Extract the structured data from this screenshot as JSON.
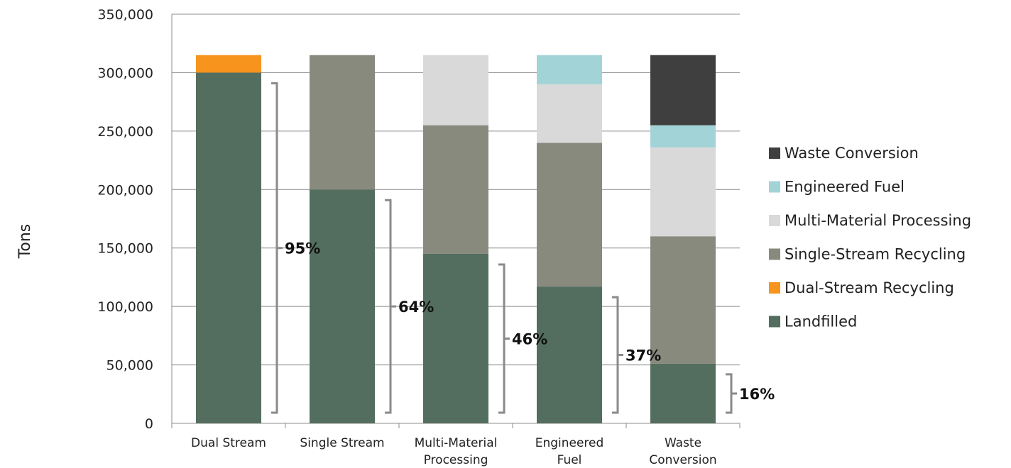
{
  "chart_data": {
    "type": "bar",
    "stacked": true,
    "ylabel": "Tons",
    "ylim": [
      0,
      350000
    ],
    "yticks": [
      "0",
      "50,000",
      "100,000",
      "150,000",
      "200,000",
      "250,000",
      "300,000",
      "350,000"
    ],
    "categories": [
      [
        "Dual Stream"
      ],
      [
        "Single Stream"
      ],
      [
        "Multi-Material",
        "Processing"
      ],
      [
        "Engineered",
        "Fuel"
      ],
      [
        "Waste",
        "Conversion"
      ]
    ],
    "series": [
      {
        "name": "Landfilled",
        "color": "#536e5f",
        "values": [
          300000,
          200000,
          145000,
          117000,
          51000
        ]
      },
      {
        "name": "Dual-Stream Recycling",
        "color": "#f7941d",
        "values": [
          15000,
          0,
          0,
          0,
          0
        ]
      },
      {
        "name": "Single-Stream Recycling",
        "color": "#898a7e",
        "values": [
          0,
          115000,
          110000,
          123000,
          109000
        ]
      },
      {
        "name": "Multi-Material Processing",
        "color": "#d9d9d9",
        "values": [
          0,
          0,
          60000,
          50000,
          76000
        ]
      },
      {
        "name": "Engineered Fuel",
        "color": "#a2d4d7",
        "values": [
          0,
          0,
          0,
          25000,
          19000
        ]
      },
      {
        "name": "Waste Conversion",
        "color": "#3f3f3f",
        "values": [
          0,
          0,
          0,
          0,
          60000
        ]
      }
    ],
    "legend_position": "right",
    "legend_order": [
      "Waste Conversion",
      "Engineered Fuel",
      "Multi-Material Processing",
      "Single-Stream Recycling",
      "Dual-Stream Recycling",
      "Landfilled"
    ],
    "annotations": [
      "95%",
      "64%",
      "46%",
      "37%",
      "16%"
    ],
    "bracket_color": "#8a8a8a",
    "grid": true
  }
}
